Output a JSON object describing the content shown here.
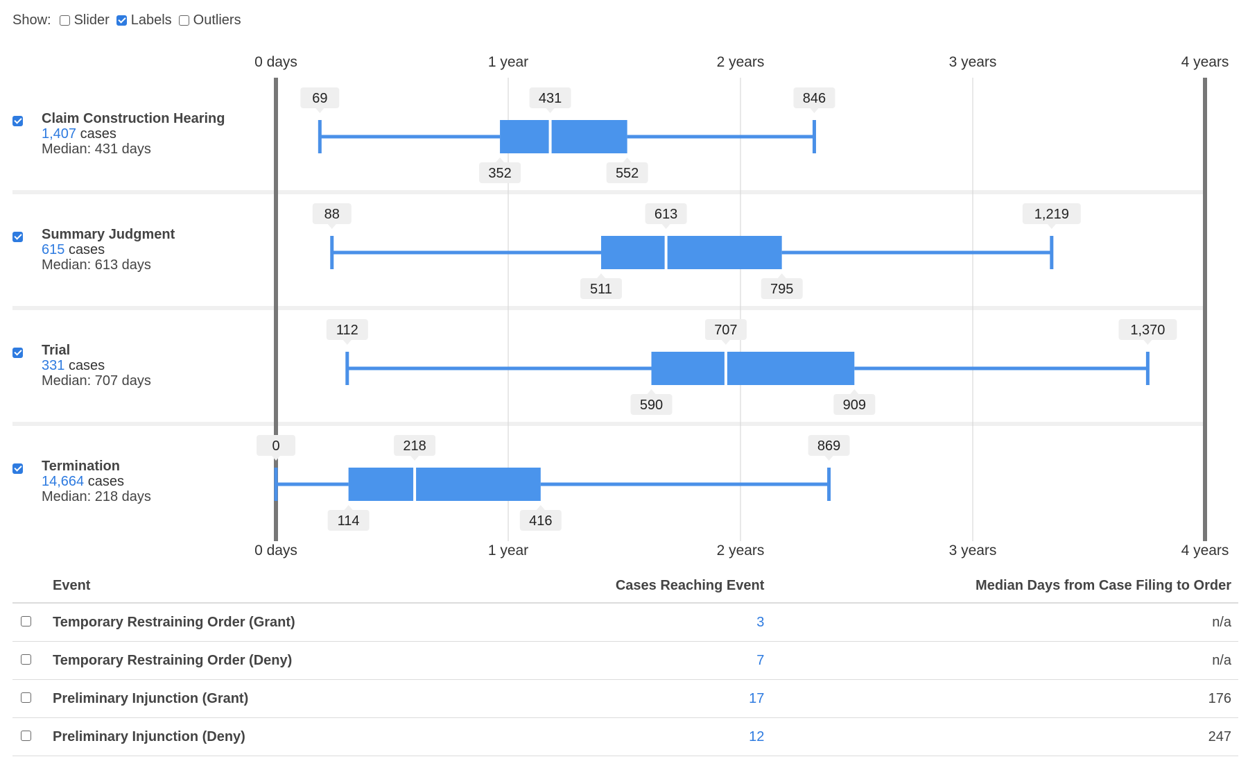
{
  "controls": {
    "show_label": "Show:",
    "options": [
      {
        "label": "Slider",
        "checked": false
      },
      {
        "label": "Labels",
        "checked": true
      },
      {
        "label": "Outliers",
        "checked": false
      }
    ]
  },
  "rows": [
    {
      "name": "Claim Construction Hearing",
      "cases": "1,407",
      "cases_suffix": "cases",
      "median_text": "Median: 431 days",
      "checked": true
    },
    {
      "name": "Summary Judgment",
      "cases": "615",
      "cases_suffix": "cases",
      "median_text": "Median: 613 days",
      "checked": true
    },
    {
      "name": "Trial",
      "cases": "331",
      "cases_suffix": "cases",
      "median_text": "Median: 707 days",
      "checked": true
    },
    {
      "name": "Termination",
      "cases": "14,664",
      "cases_suffix": "cases",
      "median_text": "Median: 218 days",
      "checked": true
    }
  ],
  "chart_data": {
    "type": "box",
    "x_unit": "days",
    "xlim": [
      0,
      1460
    ],
    "x_ticks": [
      {
        "value": 0,
        "label": "0 days"
      },
      {
        "value": 365,
        "label": "1 year"
      },
      {
        "value": 730,
        "label": "2 years"
      },
      {
        "value": 1095,
        "label": "3 years"
      },
      {
        "value": 1460,
        "label": "4 years"
      }
    ],
    "series": [
      {
        "name": "Claim Construction Hearing",
        "min": 69,
        "q1": 352,
        "median": 431,
        "q3": 552,
        "max": 846,
        "labels": {
          "min": "69",
          "q1": "352",
          "median": "431",
          "q3": "552",
          "max": "846"
        }
      },
      {
        "name": "Summary Judgment",
        "min": 88,
        "q1": 511,
        "median": 613,
        "q3": 795,
        "max": 1219,
        "labels": {
          "min": "88",
          "q1": "511",
          "median": "613",
          "q3": "795",
          "max": "1,219"
        }
      },
      {
        "name": "Trial",
        "min": 112,
        "q1": 590,
        "median": 707,
        "q3": 909,
        "max": 1370,
        "labels": {
          "min": "112",
          "q1": "590",
          "median": "707",
          "q3": "909",
          "max": "1,370"
        }
      },
      {
        "name": "Termination",
        "min": 0,
        "q1": 114,
        "median": 218,
        "q3": 416,
        "max": 869,
        "labels": {
          "min": "0",
          "q1": "114",
          "median": "218",
          "q3": "416",
          "max": "869"
        }
      }
    ],
    "colors": {
      "box": "#4a94ec",
      "line": "#4a90e8",
      "axis_line": "#777777",
      "grid": "#d9d9d9",
      "label_bg": "#efefef"
    }
  },
  "table": {
    "headers": {
      "event": "Event",
      "cases": "Cases Reaching Event",
      "median": "Median Days from Case Filing to Order"
    },
    "rows": [
      {
        "event": "Temporary Restraining Order (Grant)",
        "cases": "3",
        "median": "n/a"
      },
      {
        "event": "Temporary Restraining Order (Deny)",
        "cases": "7",
        "median": "n/a"
      },
      {
        "event": "Preliminary Injunction (Grant)",
        "cases": "17",
        "median": "176"
      },
      {
        "event": "Preliminary Injunction (Deny)",
        "cases": "12",
        "median": "247"
      }
    ]
  }
}
